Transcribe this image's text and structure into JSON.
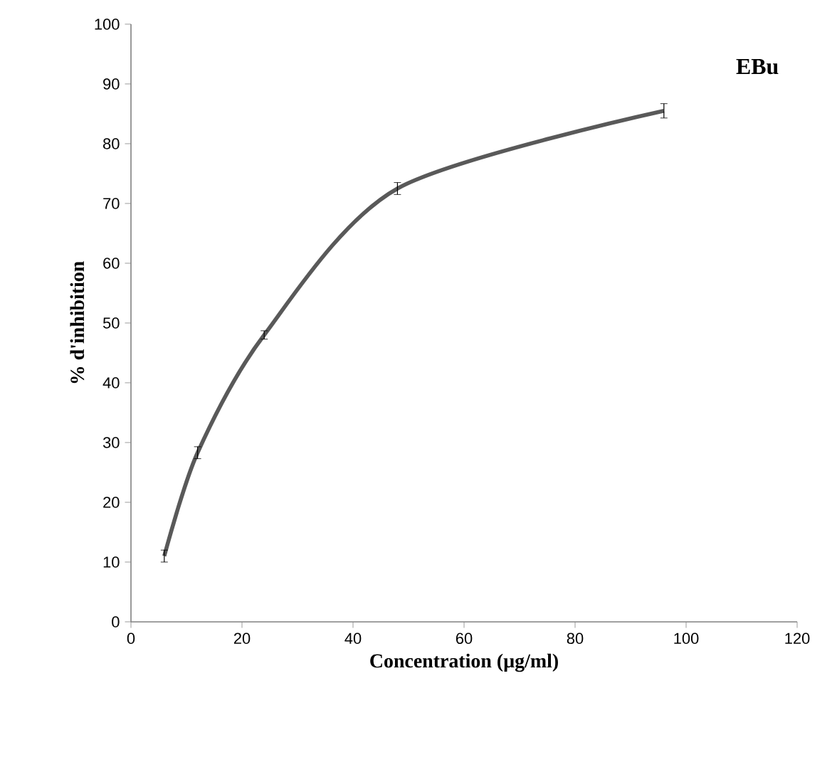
{
  "chart_data": {
    "type": "line",
    "xlabel": "Concentration (µg/ml)",
    "ylabel": "% d'inhibition",
    "annotations": [
      "EBu"
    ],
    "x": [
      6,
      12,
      24,
      48,
      96
    ],
    "series": [
      {
        "color": "#595959",
        "values": [
          11,
          28.3,
          48,
          72.5,
          85.5
        ],
        "errors": [
          1,
          1,
          0.7,
          1,
          1.2
        ]
      }
    ],
    "xlim": [
      0,
      120
    ],
    "xticks": [
      0,
      20,
      40,
      60,
      80,
      100,
      120
    ],
    "ylim": [
      0,
      100
    ],
    "yticks": [
      0,
      10,
      20,
      30,
      40,
      50,
      60,
      70,
      80,
      90,
      100
    ],
    "grid": false,
    "marker": "none",
    "line_style": "solid"
  }
}
